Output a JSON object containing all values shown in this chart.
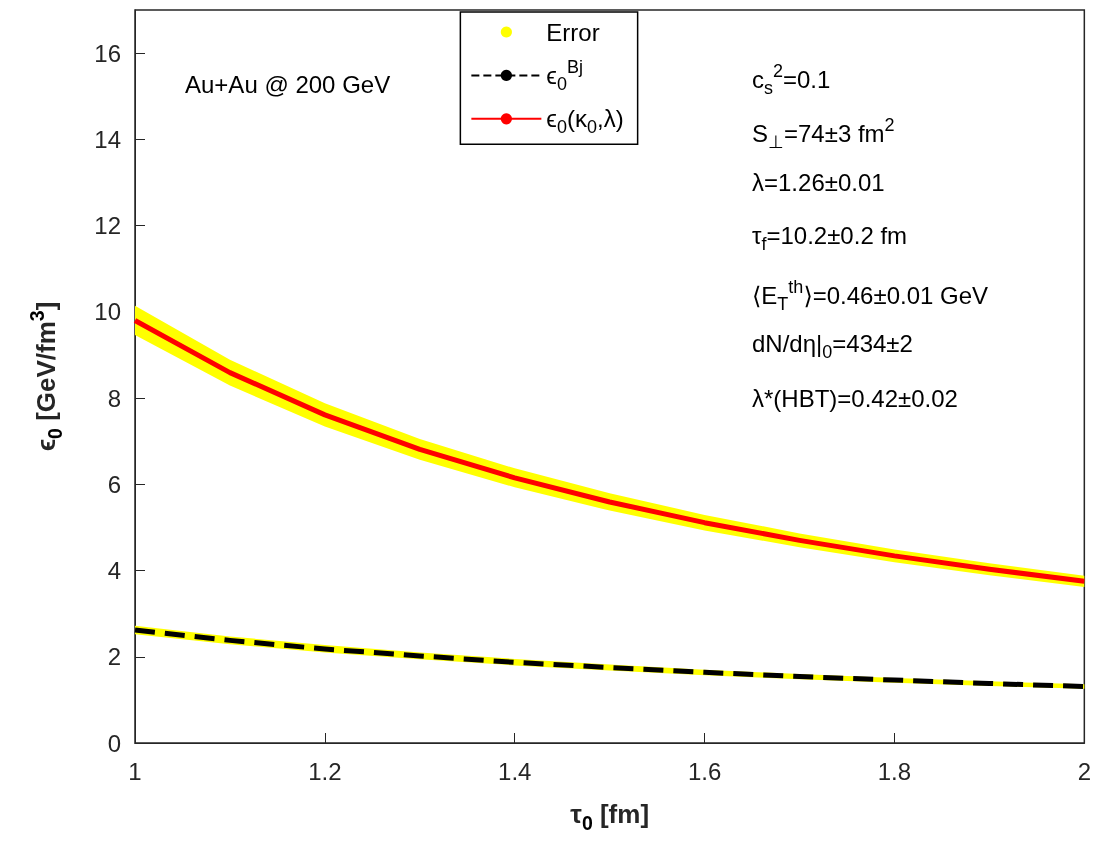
{
  "chart_data": {
    "type": "line",
    "xlabel": "τ$_{0}$ [fm]",
    "ylabel": "ϵ$_{0}$ [GeV/fm$^{3}$]",
    "x": [
      1,
      1.1,
      1.2,
      1.3,
      1.4,
      1.5,
      1.6,
      1.7,
      1.8,
      1.9,
      2
    ],
    "xlim": [
      1,
      2
    ],
    "xticks": [
      1,
      1.2,
      1.4,
      1.6,
      1.8,
      2
    ],
    "ylim": [
      0,
      17
    ],
    "yticks": [
      0,
      2,
      4,
      6,
      8,
      10,
      12,
      14,
      16
    ],
    "grid": false,
    "legend": "top",
    "marker": "none",
    "series": [
      {
        "name": "Error",
        "type": "area",
        "color": "#ffff00",
        "values": [
          null,
          null,
          null,
          null,
          null,
          null,
          null,
          null,
          null,
          null,
          null
        ]
      },
      {
        "name": "ϵ$_{0}$$^{Bj}$",
        "type": "line",
        "color": "#000000",
        "line_style": "dashed",
        "values": [
          2.62,
          2.38,
          2.18,
          2.02,
          1.87,
          1.75,
          1.64,
          1.54,
          1.46,
          1.38,
          1.31
        ],
        "lower": [
          2.52,
          2.29,
          2.1,
          1.94,
          1.8,
          1.68,
          1.57,
          1.48,
          1.4,
          1.32,
          1.26
        ],
        "upper": [
          2.72,
          2.47,
          2.27,
          2.1,
          1.95,
          1.82,
          1.7,
          1.6,
          1.51,
          1.43,
          1.36
        ]
      },
      {
        "name": "ϵ$_{0}$(κ$_{0}$,λ)",
        "type": "line",
        "color": "#ff0000",
        "line_style": "solid",
        "values": [
          9.8,
          8.59,
          7.61,
          6.81,
          6.15,
          5.59,
          5.11,
          4.7,
          4.34,
          4.03,
          3.75
        ],
        "lower": [
          9.46,
          8.29,
          7.34,
          6.57,
          5.93,
          5.39,
          4.93,
          4.54,
          4.19,
          3.89,
          3.62
        ],
        "upper": [
          10.14,
          8.89,
          7.88,
          7.05,
          6.37,
          5.79,
          5.29,
          4.86,
          4.49,
          4.17,
          3.88
        ]
      }
    ],
    "annotations": [
      "Au+Au @ 200 GeV",
      "c$_{s}$$^{2}$=0.1",
      "S$_{⊥}$=74±3 fm$^{2}$",
      "λ=1.26±0.01",
      "τ$_{f}$=10.2±0.2 fm",
      "⟨E$_{T}$$^{th}$⟩=0.46±0.01 GeV",
      "dN/dη|$_{0}$=434±2",
      "λ*(HBT)=0.42±0.02"
    ]
  }
}
